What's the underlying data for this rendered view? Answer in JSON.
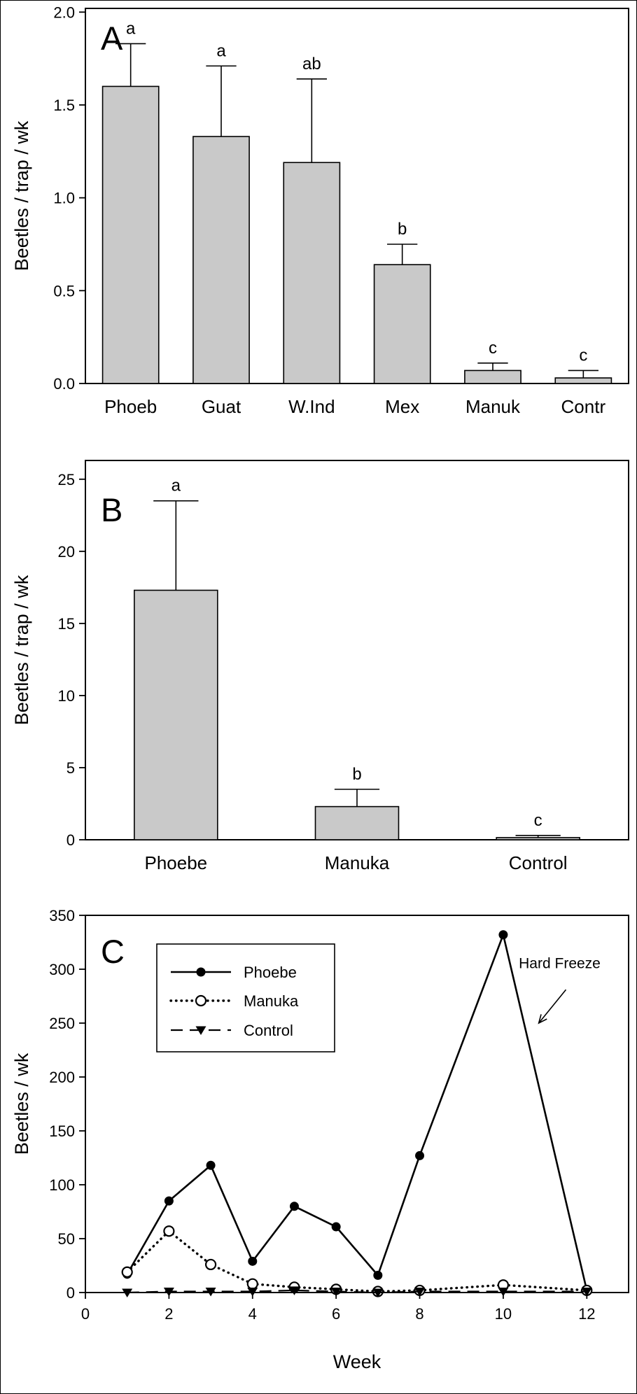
{
  "figure": {
    "background": "#ffffff",
    "border_color": "#000000",
    "panel_labels": [
      "A",
      "B",
      "C"
    ]
  },
  "chart_data": [
    {
      "type": "bar",
      "panel_label": "A",
      "ylabel": "Beetles / trap / wk",
      "xlabel": "",
      "categories": [
        "Phoeb",
        "Guat",
        "W.Ind",
        "Mex",
        "Manuk",
        "Contr"
      ],
      "values": [
        1.6,
        1.33,
        1.19,
        0.64,
        0.07,
        0.03
      ],
      "error_plus": [
        0.23,
        0.38,
        0.45,
        0.11,
        0.04,
        0.04
      ],
      "sig_letters": [
        "a",
        "a",
        "ab",
        "b",
        "c",
        "c"
      ],
      "ylim": [
        0,
        2.02
      ],
      "yticks": [
        0,
        0.5,
        1,
        1.5,
        2
      ],
      "ytick_labels": [
        "0.0",
        "0.5",
        "1.0",
        "1.5",
        "2.0"
      ],
      "bar_color": "#c9c9c9",
      "bar_edge_color": "#000000",
      "bar_width_ratio": 0.62,
      "grid": false
    },
    {
      "type": "bar",
      "panel_label": "B",
      "ylabel": "Beetles / trap / wk",
      "xlabel": "",
      "categories": [
        "Phoebe",
        "Manuka",
        "Control"
      ],
      "values": [
        17.3,
        2.3,
        0.15
      ],
      "error_plus": [
        6.2,
        1.2,
        0.15
      ],
      "sig_letters": [
        "a",
        "b",
        "c"
      ],
      "ylim": [
        0,
        26.3
      ],
      "yticks": [
        0,
        5,
        10,
        15,
        20,
        25
      ],
      "ytick_labels": [
        "0",
        "5",
        "10",
        "15",
        "20",
        "25"
      ],
      "bar_color": "#c9c9c9",
      "bar_edge_color": "#000000",
      "bar_width_ratio": 0.46,
      "grid": false
    },
    {
      "type": "line",
      "panel_label": "C",
      "ylabel": "Beetles / wk",
      "xlabel": "Week",
      "x": [
        1,
        2,
        3,
        4,
        5,
        6,
        7,
        8,
        10,
        12
      ],
      "series": [
        {
          "name": "Phoebe",
          "values": [
            17,
            85,
            118,
            29,
            80,
            61,
            16,
            127,
            332,
            2
          ],
          "line": "solid",
          "marker": "filled-circle"
        },
        {
          "name": "Manuka",
          "values": [
            19,
            57,
            26,
            8,
            5,
            3,
            1,
            2,
            7,
            2
          ],
          "line": "dotted",
          "marker": "open-circle"
        },
        {
          "name": "Control",
          "values": [
            0,
            1,
            1,
            1,
            2,
            1,
            0,
            1,
            1,
            1
          ],
          "line": "dashed",
          "marker": "filled-triangle"
        }
      ],
      "xlim": [
        0,
        13
      ],
      "xticks": [
        0,
        2,
        4,
        6,
        8,
        10,
        12
      ],
      "ylim": [
        0,
        350
      ],
      "yticks": [
        0,
        50,
        100,
        150,
        200,
        250,
        300,
        350
      ],
      "ytick_labels": [
        "0",
        "50",
        "100",
        "150",
        "200",
        "250",
        "300",
        "350"
      ],
      "legend": {
        "position": "top-left",
        "entries": [
          "Phoebe",
          "Manuka",
          "Control"
        ]
      },
      "annotation": {
        "text": "Hard Freeze",
        "text_xy": [
          11.35,
          301
        ],
        "arrow_from": [
          11.5,
          281
        ],
        "arrow_to": [
          10.85,
          250
        ]
      },
      "grid": false
    }
  ]
}
